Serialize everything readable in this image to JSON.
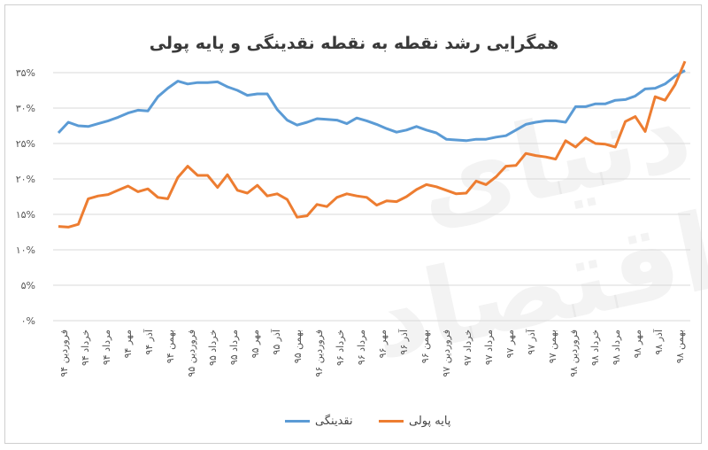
{
  "chart_data": {
    "type": "line",
    "title": "همگرایی رشد نقطه به نقطه نقدینگی و پایه پولی",
    "y_ticks": [
      "۰%",
      "۵%",
      "۱۰%",
      "۱۵%",
      "۲۰%",
      "۲۵%",
      "۳۰%",
      "۳۵%"
    ],
    "ylim": [
      0,
      35
    ],
    "x_ticks": [
      "فروردین ۹۴",
      "خرداد ۹۴",
      "مرداد ۹۴",
      "مهر ۹۴",
      "آذر ۹۴",
      "بهمن ۹۴",
      "فروردین ۹۵",
      "خرداد ۹۵",
      "مرداد ۹۵",
      "مهر ۹۵",
      "آذر ۹۵",
      "بهمن ۹۵",
      "فروردین ۹۶",
      "خرداد ۹۶",
      "مرداد ۹۶",
      "مهر ۹۶",
      "آذر ۹۶",
      "بهمن ۹۶",
      "فروردین ۹۷",
      "خرداد ۹۷",
      "مرداد ۹۷",
      "مهر ۹۷",
      "آذر ۹۷",
      "بهمن ۹۷",
      "فروردین ۹۸",
      "خرداد ۹۸",
      "مرداد ۹۸",
      "مهر ۹۸",
      "آذر ۹۸",
      "بهمن ۹۸"
    ],
    "grid": true,
    "legend_position": "bottom",
    "series": [
      {
        "name": "نقدینگی",
        "color": "#5b9bd5",
        "values": [
          26.5,
          28.0,
          27.5,
          27.4,
          27.8,
          28.2,
          28.7,
          29.3,
          29.7,
          29.6,
          31.6,
          32.8,
          33.8,
          33.4,
          33.6,
          33.6,
          33.7,
          33.0,
          32.5,
          31.8,
          32.0,
          32.0,
          29.8,
          28.3,
          27.6,
          28.0,
          28.5,
          28.4,
          28.3,
          27.8,
          28.6,
          28.2,
          27.7,
          27.1,
          26.6,
          26.9,
          27.4,
          26.9,
          26.5,
          25.6,
          25.5,
          25.4,
          25.6,
          25.6,
          25.9,
          26.1,
          26.9,
          27.7,
          28.0,
          28.2,
          28.2,
          28.0,
          30.2,
          30.2,
          30.6,
          30.6,
          31.1,
          31.2,
          31.7,
          32.7,
          32.8,
          33.4,
          34.5,
          35.3
        ]
      },
      {
        "name": "پایه پولی",
        "color": "#ed7d31",
        "values": [
          13.3,
          13.2,
          13.6,
          17.2,
          17.6,
          17.8,
          18.4,
          19.0,
          18.2,
          18.6,
          17.4,
          17.2,
          20.2,
          21.8,
          20.5,
          20.5,
          18.8,
          20.6,
          18.4,
          18.0,
          19.1,
          17.6,
          17.9,
          17.1,
          14.6,
          14.8,
          16.4,
          16.1,
          17.4,
          17.9,
          17.6,
          17.4,
          16.3,
          16.9,
          16.8,
          17.5,
          18.5,
          19.2,
          18.9,
          18.4,
          17.9,
          18.0,
          19.7,
          19.2,
          20.3,
          21.8,
          21.9,
          23.6,
          23.3,
          23.1,
          22.8,
          25.4,
          24.5,
          25.8,
          25.0,
          24.9,
          24.5,
          28.1,
          28.8,
          26.7,
          31.6,
          31.1,
          33.3,
          36.6
        ]
      }
    ]
  },
  "legend": {
    "item1_label": "نقدینگی",
    "item2_label": "پایه پولی"
  },
  "watermark_text": "دنیای اقتصاد"
}
